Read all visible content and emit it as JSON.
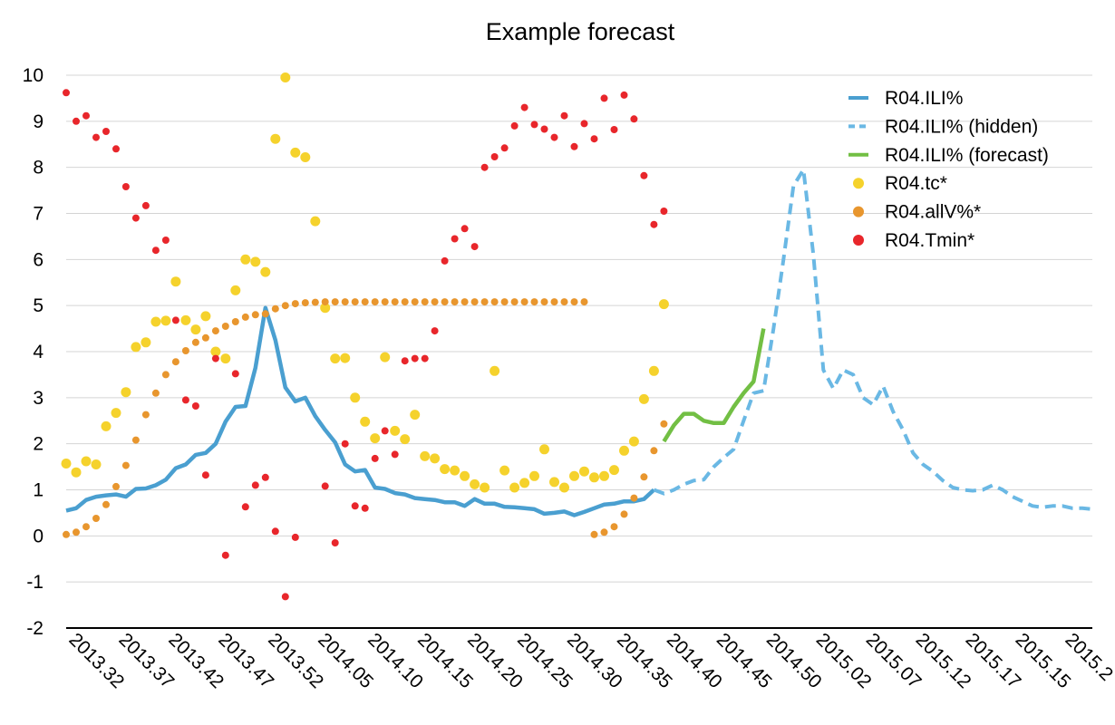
{
  "chart_data": {
    "type": "line",
    "title": "Example forecast",
    "xlabel": "",
    "ylabel": "",
    "ylim": [
      -2,
      10
    ],
    "yticks": [
      -2,
      -1,
      0,
      1,
      2,
      3,
      4,
      5,
      6,
      7,
      8,
      9,
      10
    ],
    "num_points": 104,
    "x_tick_labels": [
      "2013.32",
      "2013.37",
      "2013.42",
      "2013.47",
      "2013.52",
      "2014.05",
      "2014.10",
      "2014.15",
      "2014.20",
      "2014.25",
      "2014.30",
      "2014.35",
      "2014.40",
      "2014.45",
      "2014.50",
      "2015.02",
      "2015.07",
      "2015.12",
      "2015.17",
      "2015.15",
      "2015.2"
    ],
    "x_tick_step": 5,
    "legend_position": "top-right",
    "series": [
      {
        "name": "R04.ILI%",
        "kind": "line",
        "color": "#4a9fd0",
        "dash": "solid",
        "start": 0,
        "values": [
          0.55,
          0.6,
          0.78,
          0.85,
          0.88,
          0.9,
          0.85,
          1.02,
          1.03,
          1.1,
          1.22,
          1.47,
          1.55,
          1.76,
          1.8,
          2.0,
          2.48,
          2.8,
          2.82,
          3.65,
          4.95,
          4.25,
          3.22,
          2.92,
          3.0,
          2.6,
          2.3,
          2.03,
          1.55,
          1.4,
          1.43,
          1.05,
          1.02,
          0.93,
          0.9,
          0.82,
          0.8,
          0.78,
          0.73,
          0.73,
          0.65,
          0.8,
          0.7,
          0.7,
          0.63,
          0.62,
          0.6,
          0.58,
          0.48,
          0.5,
          0.53,
          0.45,
          0.52,
          0.6,
          0.68,
          0.7,
          0.75,
          0.75,
          0.8,
          1.0
        ]
      },
      {
        "name": "R04.ILI% (hidden)",
        "kind": "line",
        "color": "#6ab8e4",
        "dash": "dashed",
        "start": 59,
        "values": [
          1.0,
          0.92,
          1.0,
          1.12,
          1.2,
          1.22,
          1.5,
          1.7,
          1.88,
          2.5,
          3.1,
          3.15,
          4.5,
          6.0,
          7.6,
          7.95,
          6.1,
          3.6,
          3.2,
          3.6,
          3.5,
          3.0,
          2.85,
          3.25,
          2.7,
          2.3,
          1.8,
          1.55,
          1.4,
          1.2,
          1.05,
          1.0,
          0.98,
          1.0,
          1.1,
          1.0,
          0.85,
          0.75,
          0.65,
          0.62,
          0.65,
          0.65,
          0.6,
          0.6,
          0.58
        ]
      },
      {
        "name": "R04.ILI% (forecast)",
        "kind": "line",
        "color": "#72bf44",
        "dash": "solid",
        "start": 60,
        "values": [
          2.05,
          2.4,
          2.65,
          2.65,
          2.5,
          2.45,
          2.45,
          2.8,
          3.1,
          3.35,
          4.5
        ]
      },
      {
        "name": "R04.tc*",
        "kind": "scatter",
        "color": "#f5d22c",
        "radius": 5.5,
        "start": 0,
        "values": [
          1.57,
          1.38,
          1.62,
          1.55,
          2.38,
          2.67,
          3.12,
          4.1,
          4.2,
          4.65,
          4.67,
          5.52,
          4.68,
          4.48,
          4.77,
          4.0,
          3.85,
          5.33,
          6.0,
          5.95,
          5.73,
          8.62,
          9.95,
          8.32,
          8.22,
          6.83,
          4.95,
          3.85,
          3.86,
          3.0,
          2.48,
          2.12,
          3.88,
          2.28,
          2.1,
          2.63,
          1.73,
          1.68,
          1.45,
          1.42,
          1.3,
          1.12,
          1.05,
          3.58,
          1.42,
          1.05,
          1.15,
          1.3,
          1.88,
          1.17,
          1.05,
          1.3,
          1.4,
          1.27,
          1.3,
          1.43,
          1.85,
          2.05,
          2.97,
          3.58,
          5.03
        ]
      },
      {
        "name": "R04.allV%*",
        "kind": "scatter",
        "color": "#e8962e",
        "radius": 4,
        "start": 0,
        "values": [
          0.03,
          0.08,
          0.2,
          0.38,
          0.68,
          1.07,
          1.53,
          2.08,
          2.63,
          3.1,
          3.5,
          3.78,
          4.02,
          4.2,
          4.3,
          4.45,
          4.55,
          4.65,
          4.75,
          4.8,
          4.82,
          4.93,
          5.0,
          5.04,
          5.06,
          5.07,
          5.08,
          5.08,
          5.08,
          5.08,
          5.08,
          5.08,
          5.08,
          5.08,
          5.08,
          5.08,
          5.08,
          5.08,
          5.08,
          5.08,
          5.08,
          5.08,
          5.08,
          5.08,
          5.08,
          5.08,
          5.08,
          5.08,
          5.08,
          5.08,
          5.08,
          5.08,
          5.08,
          null,
          null,
          null,
          null,
          null,
          null,
          null,
          null,
          null,
          null,
          null,
          null,
          null,
          null,
          null,
          null,
          null,
          null,
          null,
          null,
          null,
          null,
          null,
          null,
          null,
          null,
          null,
          null,
          null,
          null,
          null,
          null,
          null,
          null,
          null,
          null,
          null,
          null,
          null,
          null,
          null,
          null,
          null,
          null,
          null,
          null,
          null,
          null,
          null,
          null,
          null
        ],
        "extra": [
          [
            53,
            0.03
          ],
          [
            54,
            0.08
          ],
          [
            55,
            0.2
          ],
          [
            56,
            0.47
          ],
          [
            57,
            0.82
          ],
          [
            58,
            1.28
          ],
          [
            59,
            1.85
          ],
          [
            60,
            2.43
          ]
        ]
      },
      {
        "name": "R04.Tmin*",
        "kind": "scatter",
        "color": "#e8262b",
        "radius": 4,
        "start": 0,
        "values": [
          9.62,
          9.0,
          9.12,
          8.65,
          8.78,
          8.4,
          7.58,
          6.9,
          7.17,
          6.2,
          6.42,
          4.68,
          2.95,
          2.82,
          1.32,
          3.85,
          -0.42,
          3.52,
          0.63,
          1.1,
          1.27,
          0.1,
          -1.32,
          -0.03,
          null,
          null,
          1.08,
          -0.15,
          2.0,
          0.65,
          0.6,
          1.68,
          2.28,
          1.77,
          3.8,
          3.85,
          3.85,
          4.45,
          5.97,
          6.45,
          6.67,
          6.28,
          8.0,
          8.23,
          8.42,
          8.9,
          9.3,
          8.93,
          8.83,
          8.65,
          9.12,
          8.45,
          8.95,
          8.62,
          9.5,
          8.82,
          9.57,
          9.05,
          7.82,
          6.76,
          7.05
        ]
      }
    ]
  }
}
